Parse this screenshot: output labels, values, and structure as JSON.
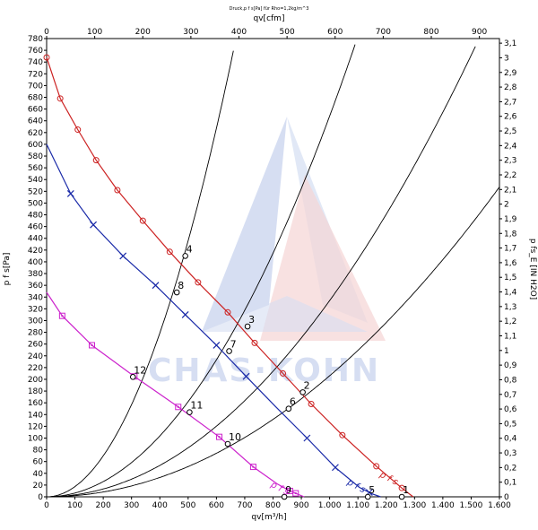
{
  "chart_data": {
    "type": "line",
    "title": "Druck,p f s[Pa] für Rho=1,2kg/m^3",
    "xlabel": "qv[m³/h]",
    "x2label": "qv[cfm]",
    "ylabel": "p f s[Pa]",
    "y2label": "p fs_E [IN H2O]",
    "xlim": [
      0,
      1600
    ],
    "ylim": [
      0,
      780
    ],
    "x2lim": [
      0,
      941.7
    ],
    "y2lim": [
      0,
      3.1314
    ],
    "x_ticks": [
      "0",
      "100",
      "200",
      "300",
      "400",
      "500",
      "600",
      "700",
      "800",
      "900",
      "1.000",
      "1.100",
      "1.200",
      "1.300",
      "1.400",
      "1.500",
      "1.600"
    ],
    "x2_ticks": [
      "0",
      "100",
      "200",
      "300",
      "400",
      "500",
      "600",
      "700",
      "800",
      "900"
    ],
    "y_ticks": [
      "0",
      "20",
      "40",
      "60",
      "80",
      "100",
      "120",
      "140",
      "160",
      "180",
      "200",
      "220",
      "240",
      "260",
      "280",
      "300",
      "320",
      "340",
      "360",
      "380",
      "400",
      "420",
      "440",
      "460",
      "480",
      "500",
      "520",
      "540",
      "560",
      "580",
      "600",
      "620",
      "640",
      "660",
      "680",
      "700",
      "720",
      "740",
      "760",
      "780"
    ],
    "y2_ticks": [
      "0",
      "0,1",
      "0,2",
      "0,3",
      "0,4",
      "0,5",
      "0,6",
      "0,7",
      "0,8",
      "0,9",
      "1",
      "1,1",
      "1,2",
      "1,3",
      "1,4",
      "1,5",
      "1,6",
      "1,7",
      "1,8",
      "1,9",
      "2",
      "2,1",
      "2,2",
      "2,3",
      "2,4",
      "2,5",
      "2,6",
      "2,7",
      "2,8",
      "2,9",
      "3",
      "3,1"
    ],
    "grid": false,
    "series": [
      {
        "color": "#cc2222",
        "marker": "circle",
        "label": "p f s",
        "label_at": [
          1175,
          35
        ],
        "x": [
          0,
          48,
          110,
          175,
          250,
          340,
          435,
          535,
          640,
          735,
          835,
          935,
          1045,
          1165,
          1255,
          1295
        ],
        "y": [
          748,
          678,
          625,
          573,
          522,
          470,
          417,
          365,
          314,
          262,
          210,
          158,
          105,
          52,
          15,
          0
        ],
        "markers_x": [
          0,
          48,
          110,
          175,
          250,
          340,
          435,
          535,
          640,
          735,
          835,
          935,
          1045,
          1165,
          1255
        ]
      },
      {
        "color": "#1a2aa8",
        "marker": "x",
        "label": "p f s",
        "label_at": [
          1060,
          22
        ],
        "x": [
          0,
          85,
          165,
          270,
          385,
          490,
          600,
          705,
          810,
          920,
          1020,
          1105,
          1150,
          1180
        ],
        "y": [
          600,
          516,
          463,
          410,
          360,
          310,
          258,
          205,
          153,
          100,
          50,
          16,
          5,
          0
        ],
        "markers_x": [
          85,
          165,
          270,
          385,
          490,
          600,
          705,
          920,
          1020,
          1140
        ]
      },
      {
        "color": "#cc22cc",
        "marker": "square",
        "label": "p f s",
        "label_at": [
          790,
          18
        ],
        "x": [
          0,
          55,
          160,
          310,
          465,
          610,
          730,
          815,
          860,
          890,
          910
        ],
        "y": [
          348,
          308,
          258,
          205,
          153,
          102,
          51,
          22,
          10,
          4,
          0
        ],
        "markers_x": [
          55,
          160,
          310,
          465,
          610,
          730,
          860,
          880
        ]
      }
    ],
    "system_curves": [
      {
        "k": 0.001743
      },
      {
        "k": 0.000648
      },
      {
        "k": 0.000334
      },
      {
        "k": 0.000206
      }
    ],
    "operating_points": [
      {
        "label": "1",
        "x": 1255,
        "y": 0,
        "k": 0
      },
      {
        "label": "2",
        "x": 905,
        "y": 178,
        "k": 0.000206
      },
      {
        "label": "3",
        "x": 710,
        "y": 290,
        "k": 0.000334
      },
      {
        "label": "4",
        "x": 490,
        "y": 410,
        "k": 0.001743
      },
      {
        "label": "5",
        "x": 1135,
        "y": 0,
        "k": 0
      },
      {
        "label": "6",
        "x": 855,
        "y": 150,
        "k": 0.000206
      },
      {
        "label": "7",
        "x": 645,
        "y": 248,
        "k": 0.000334
      },
      {
        "label": "8",
        "x": 460,
        "y": 348,
        "k": 0.001743
      },
      {
        "label": "9",
        "x": 840,
        "y": 0,
        "k": 0
      },
      {
        "label": "10",
        "x": 640,
        "y": 90,
        "k": 0.000206
      },
      {
        "label": "11",
        "x": 505,
        "y": 144,
        "k": 0.000648
      },
      {
        "label": "12",
        "x": 305,
        "y": 204,
        "k": 0.001743
      }
    ],
    "watermark": {
      "text": "CHAS·KOHN"
    }
  }
}
